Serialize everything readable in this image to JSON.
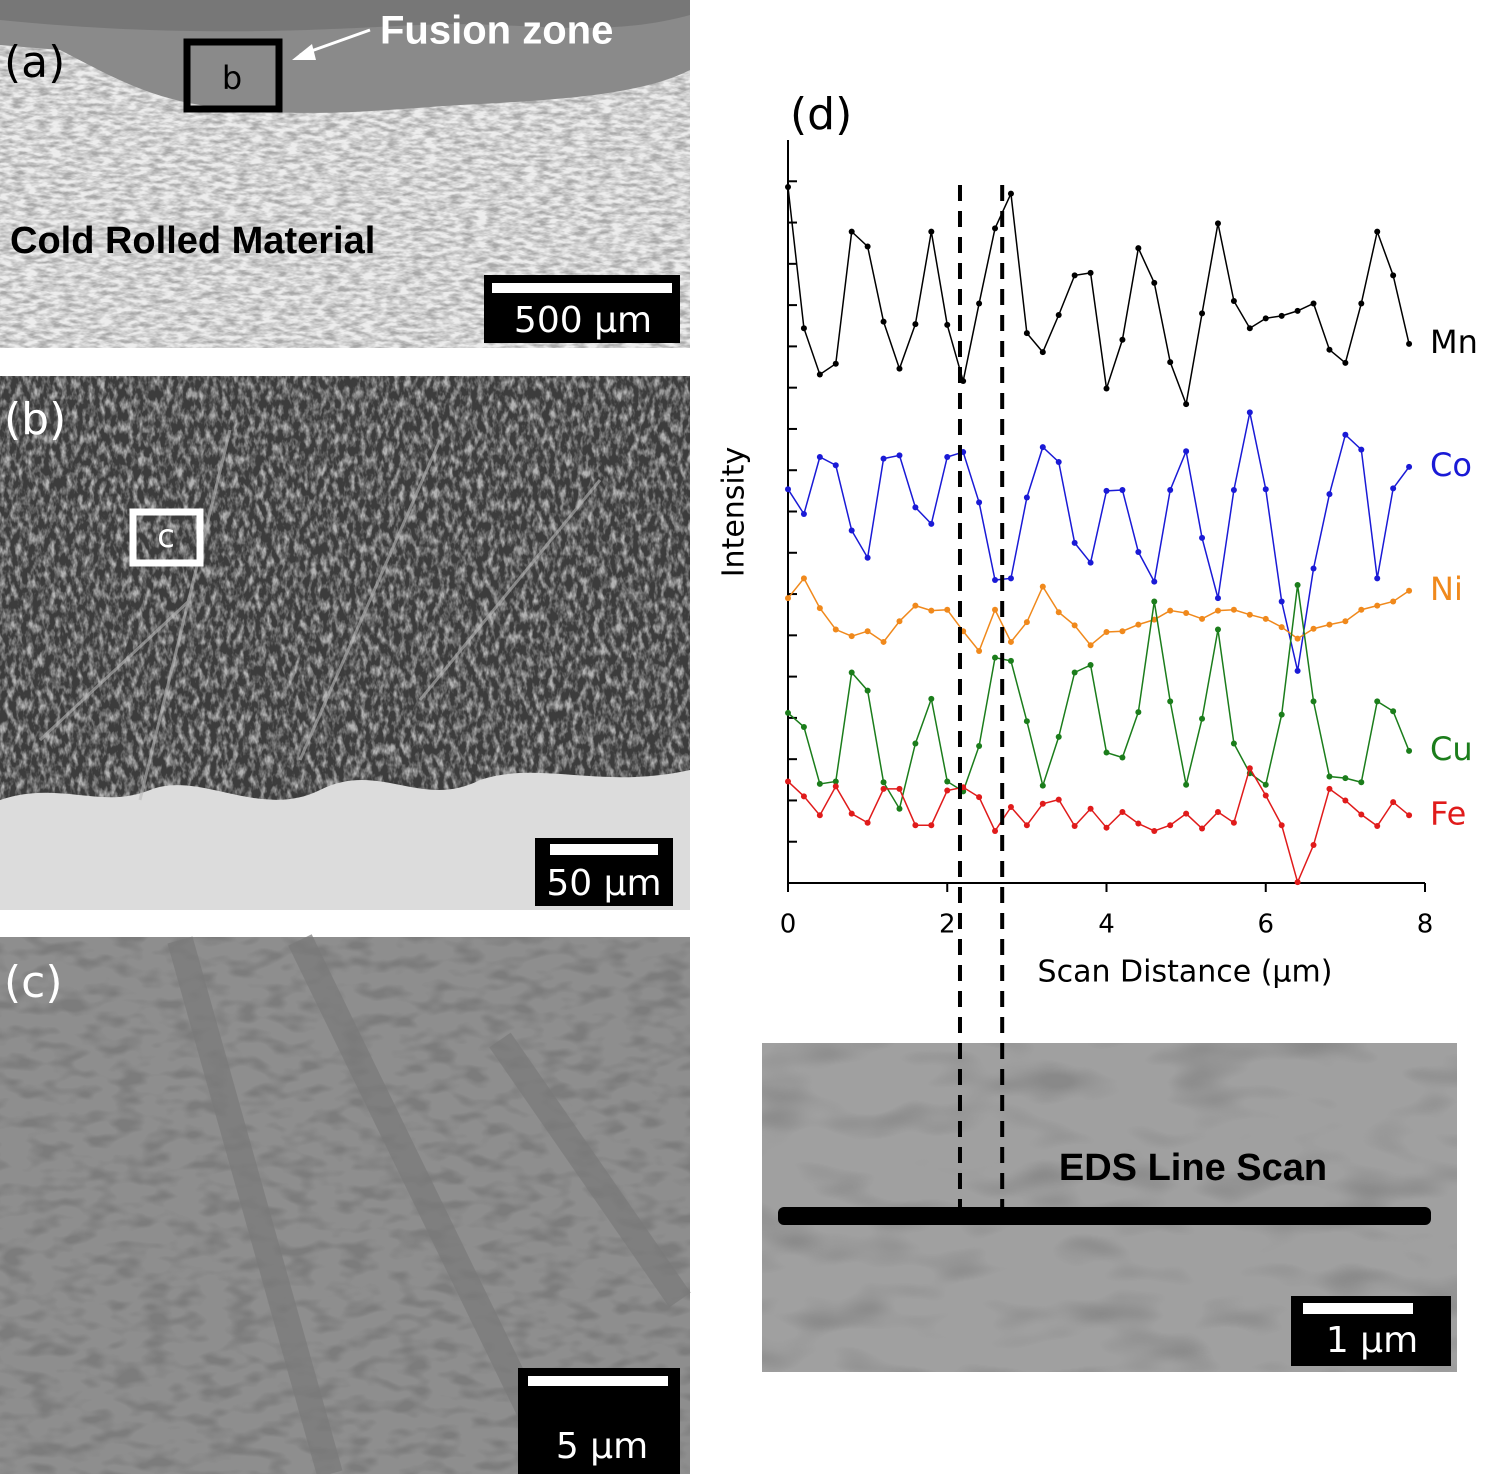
{
  "panels": {
    "a": {
      "label": "(a)",
      "annotation": "Fusion zone",
      "box_label": "b",
      "region": "Cold Rolled Material",
      "scale": "500 μm"
    },
    "b": {
      "label": "(b)",
      "box_label": "c",
      "scale": "50 μm"
    },
    "c": {
      "label": "(c)",
      "scale": "5 μm"
    },
    "d": {
      "label": "(d)",
      "annotation": "EDS Line Scan",
      "scale": "1 μm"
    }
  },
  "chart_data": {
    "type": "line",
    "xlabel": "Scan Distance (μm)",
    "ylabel": "Intensity",
    "x": [
      0,
      0.2,
      0.4,
      0.6,
      0.8,
      1.0,
      1.2,
      1.4,
      1.6,
      1.8,
      2.0,
      2.2,
      2.4,
      2.6,
      2.8,
      3.0,
      3.2,
      3.4,
      3.6,
      3.8,
      4.0,
      4.2,
      4.4,
      4.6,
      4.8,
      5.0,
      5.2,
      5.4,
      5.6,
      5.8,
      6.0,
      6.2,
      6.4,
      6.6,
      6.8,
      7.0,
      7.2,
      7.4,
      7.6,
      7.8
    ],
    "xlim": [
      0,
      8
    ],
    "xticks": [
      0,
      2,
      4,
      6,
      8
    ],
    "ylim": [
      0,
      9
    ],
    "yticks": [
      0.5,
      1,
      1.5,
      2,
      2.5,
      3,
      3.5,
      4,
      4.5,
      5,
      5.5,
      6,
      6.5,
      7,
      7.5,
      8,
      8.5
    ],
    "ytick_labels": false,
    "dashed_lines_x": [
      2.16,
      2.69
    ],
    "series": [
      {
        "name": "Mn",
        "color": "#000000",
        "values": [
          8.43,
          6.72,
          6.16,
          6.29,
          7.89,
          7.71,
          6.8,
          6.23,
          6.77,
          7.89,
          6.76,
          6.08,
          7.02,
          7.93,
          8.35,
          6.66,
          6.43,
          6.88,
          7.36,
          7.39,
          5.99,
          6.58,
          7.69,
          7.27,
          6.31,
          5.8,
          6.9,
          7.99,
          7.05,
          6.72,
          6.84,
          6.87,
          6.93,
          7.02,
          6.46,
          6.3,
          7.02,
          7.89,
          7.36,
          6.53
        ]
      },
      {
        "name": "Co",
        "color": "#1a1ad6",
        "values": [
          4.77,
          4.47,
          5.16,
          5.06,
          4.27,
          3.94,
          5.14,
          5.18,
          4.55,
          4.35,
          5.16,
          5.22,
          4.61,
          3.67,
          3.69,
          4.67,
          5.28,
          5.1,
          4.12,
          3.88,
          4.75,
          4.76,
          4.01,
          3.65,
          4.76,
          5.23,
          4.18,
          3.45,
          4.76,
          5.7,
          4.77,
          3.41,
          2.57,
          3.81,
          4.71,
          5.43,
          5.25,
          3.69,
          4.78,
          5.04
        ]
      },
      {
        "name": "Ni",
        "color": "#f0891c",
        "values": [
          3.45,
          3.69,
          3.33,
          3.07,
          2.99,
          3.05,
          2.92,
          3.17,
          3.36,
          3.3,
          3.31,
          3.05,
          2.81,
          3.31,
          2.92,
          3.16,
          3.59,
          3.28,
          3.12,
          2.88,
          3.04,
          3.05,
          3.13,
          3.19,
          3.3,
          3.27,
          3.2,
          3.3,
          3.31,
          3.25,
          3.2,
          3.1,
          2.96,
          3.08,
          3.13,
          3.17,
          3.31,
          3.36,
          3.41,
          3.54
        ]
      },
      {
        "name": "Cu",
        "color": "#1b7d1b",
        "values": [
          2.06,
          1.89,
          1.2,
          1.23,
          2.55,
          2.33,
          1.22,
          0.9,
          1.69,
          2.23,
          1.23,
          1.11,
          1.66,
          2.73,
          2.69,
          1.96,
          1.18,
          1.77,
          2.55,
          2.64,
          1.58,
          1.52,
          2.07,
          3.41,
          2.2,
          1.19,
          1.99,
          3.07,
          1.69,
          1.33,
          1.19,
          2.04,
          3.61,
          2.2,
          1.29,
          1.27,
          1.22,
          2.2,
          2.08,
          1.6
        ]
      },
      {
        "name": "Fe",
        "color": "#e01b1b",
        "values": [
          1.23,
          1.05,
          0.82,
          1.17,
          0.84,
          0.73,
          1.14,
          1.14,
          0.7,
          0.7,
          1.12,
          1.16,
          1.04,
          0.63,
          0.92,
          0.7,
          0.96,
          1.01,
          0.69,
          0.9,
          0.67,
          0.86,
          0.72,
          0.63,
          0.7,
          0.84,
          0.66,
          0.86,
          0.73,
          1.39,
          1.06,
          0.7,
          0.01,
          0.46,
          1.14,
          1.0,
          0.83,
          0.69,
          0.98,
          0.82
        ]
      }
    ]
  }
}
